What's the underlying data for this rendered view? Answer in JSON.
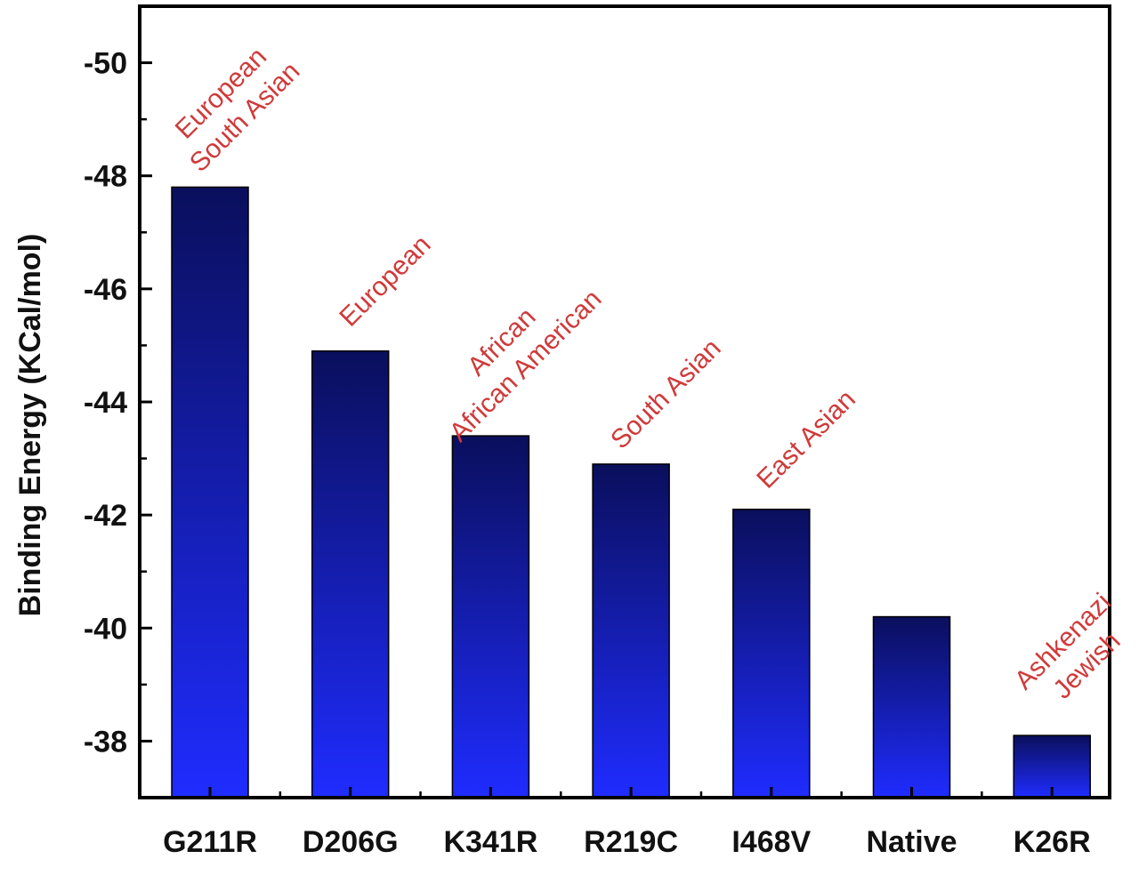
{
  "chart_data": {
    "type": "bar",
    "title": "",
    "xlabel": "",
    "ylabel": "Binding Energy (KCal/mol)",
    "ylim": [
      -37,
      -51
    ],
    "y_inverted": true,
    "yticks": [
      -50,
      -48,
      -46,
      -44,
      -42,
      -40,
      -38
    ],
    "ytick_labels": [
      "-50",
      "-48",
      "-46",
      "-44",
      "-42",
      "-40",
      "-38"
    ],
    "grid": false,
    "categories": [
      "G211R",
      "D206G",
      "K341R",
      "R219C",
      "I468V",
      "Native",
      "K26R"
    ],
    "values": [
      -47.8,
      -44.9,
      -43.4,
      -42.9,
      -42.1,
      -40.2,
      -38.1
    ],
    "annotations": [
      {
        "category": "G211R",
        "lines": [
          "European",
          "South Asian"
        ]
      },
      {
        "category": "D206G",
        "lines": [
          "European"
        ]
      },
      {
        "category": "K341R",
        "lines": [
          "African",
          "African American"
        ]
      },
      {
        "category": "R219C",
        "lines": [
          "South Asian"
        ]
      },
      {
        "category": "I468V",
        "lines": [
          "East Asian"
        ]
      },
      {
        "category": "K26R",
        "lines": [
          "Ashkenazi",
          "Jewish"
        ]
      }
    ],
    "colors": {
      "bar_top": "#0a0f5c",
      "bar_bottom": "#1f2cff",
      "annotation": "#d03a3a",
      "axis": "#000000"
    }
  }
}
